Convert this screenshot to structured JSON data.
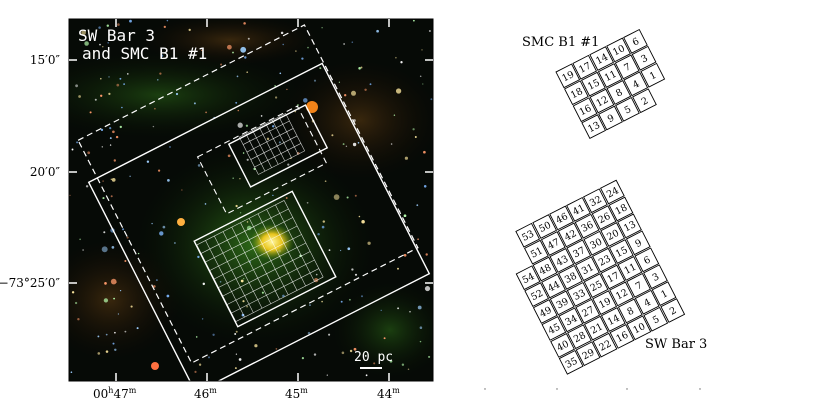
{
  "left_panel": {
    "title_lines": [
      "SW Bar 3",
      "and SMC B1 #1"
    ],
    "scale_bar_label": "20 pc",
    "y_tick_labels": [
      "15′0″",
      "20′0″",
      "−73°25′0″"
    ],
    "x_tick_labels": [
      {
        "base": "00",
        "sup1": "h",
        "mid": "47",
        "sup2": "m"
      },
      {
        "base": "46",
        "sup1": "",
        "mid": "",
        "sup2": "m"
      },
      {
        "base": "45",
        "sup1": "",
        "mid": "",
        "sup2": "m"
      },
      {
        "base": "44",
        "sup1": "",
        "mid": "",
        "sup2": "m"
      }
    ]
  },
  "right_panel": {
    "smc_b1_label": "SMC B1 #1",
    "smc_b1_fields": [
      [
        19,
        17,
        14,
        10,
        6
      ],
      [
        18,
        15,
        11,
        7,
        3
      ],
      [
        16,
        12,
        8,
        4,
        1
      ],
      [
        13,
        9,
        5,
        2
      ]
    ],
    "sw_bar_label": "SW Bar 3",
    "sw_bar_fields": [
      [
        53,
        50,
        46,
        41,
        32,
        24
      ],
      [
        51,
        47,
        42,
        36,
        26,
        18
      ],
      [
        54,
        48,
        43,
        37,
        30,
        20,
        13
      ],
      [
        52,
        44,
        38,
        31,
        23,
        15,
        9
      ],
      [
        49,
        39,
        33,
        25,
        17,
        11,
        6
      ],
      [
        45,
        34,
        27,
        19,
        12,
        7,
        3
      ],
      [
        40,
        28,
        21,
        14,
        8,
        4,
        1
      ],
      [
        35,
        29,
        22,
        16,
        10,
        5,
        2
      ]
    ]
  },
  "colors": {
    "sky_background": "#060a06",
    "overlay": "#ffffff",
    "ink": "#000000"
  }
}
